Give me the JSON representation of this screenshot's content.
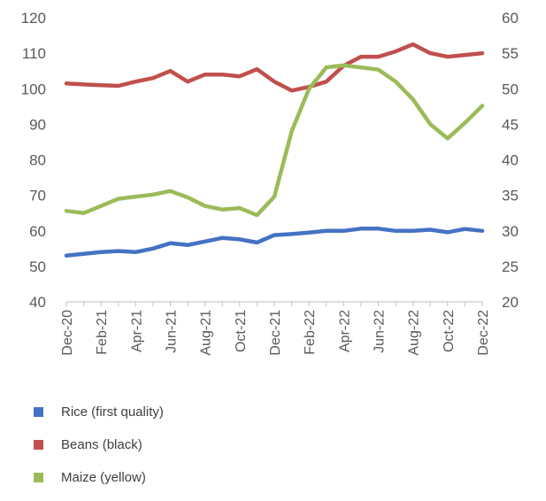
{
  "chart_data": {
    "type": "line",
    "title": "",
    "xlabel": "",
    "ylabel": "",
    "ylim": [
      40,
      120
    ],
    "y_ticks": [
      40,
      50,
      60,
      70,
      80,
      90,
      100,
      110,
      120
    ],
    "y2lim": [
      20,
      60
    ],
    "y2_ticks": [
      20,
      25,
      30,
      35,
      40,
      45,
      50,
      55,
      60
    ],
    "grid": false,
    "legend_position": "bottom-left",
    "x": [
      "Dec-20",
      "Jan-21",
      "Feb-21",
      "Mar-21",
      "Apr-21",
      "May-21",
      "Jun-21",
      "Jul-21",
      "Aug-21",
      "Sep-21",
      "Oct-21",
      "Nov-21",
      "Dec-21",
      "Jan-22",
      "Feb-22",
      "Mar-22",
      "Apr-22",
      "May-22",
      "Jun-22",
      "Jul-22",
      "Aug-22",
      "Sep-22",
      "Oct-22",
      "Nov-22",
      "Dec-22"
    ],
    "x_tick_labels": [
      "Dec-20",
      "Feb-21",
      "Apr-21",
      "Jun-21",
      "Aug-21",
      "Oct-21",
      "Dec-21",
      "Feb-22",
      "Apr-22",
      "Jun-22",
      "Aug-22",
      "Oct-22",
      "Dec-22"
    ],
    "series": [
      {
        "name": "Rice (first quality)",
        "color": "#4472C4",
        "axis": "left",
        "values": [
          53,
          53.5,
          54,
          54.3,
          54,
          55,
          56.5,
          56,
          57,
          58,
          57.6,
          56.7,
          58.8,
          59.1,
          59.5,
          60,
          60,
          60.6,
          60.6,
          60,
          60,
          60.3,
          59.6,
          60.5,
          60
        ]
      },
      {
        "name": "Beans (black)",
        "color": "#C0504D",
        "axis": "left",
        "values": [
          101.5,
          101.2,
          101,
          100.8,
          102,
          103,
          105,
          102,
          104,
          104,
          103.5,
          105.5,
          102,
          99.5,
          100.5,
          102,
          106.5,
          109,
          109,
          110.5,
          112.5,
          110,
          109,
          109.5,
          110
        ]
      },
      {
        "name": "Maize (yellow)",
        "color": "#9BBB59",
        "axis": "right",
        "values": [
          32.8,
          32.5,
          33.5,
          34.5,
          34.8,
          35.1,
          35.6,
          34.7,
          33.5,
          33,
          33.2,
          32.2,
          34.8,
          44,
          50,
          53,
          53.3,
          53,
          52.7,
          51,
          48.5,
          45,
          43,
          45.2,
          47.6
        ]
      }
    ]
  }
}
